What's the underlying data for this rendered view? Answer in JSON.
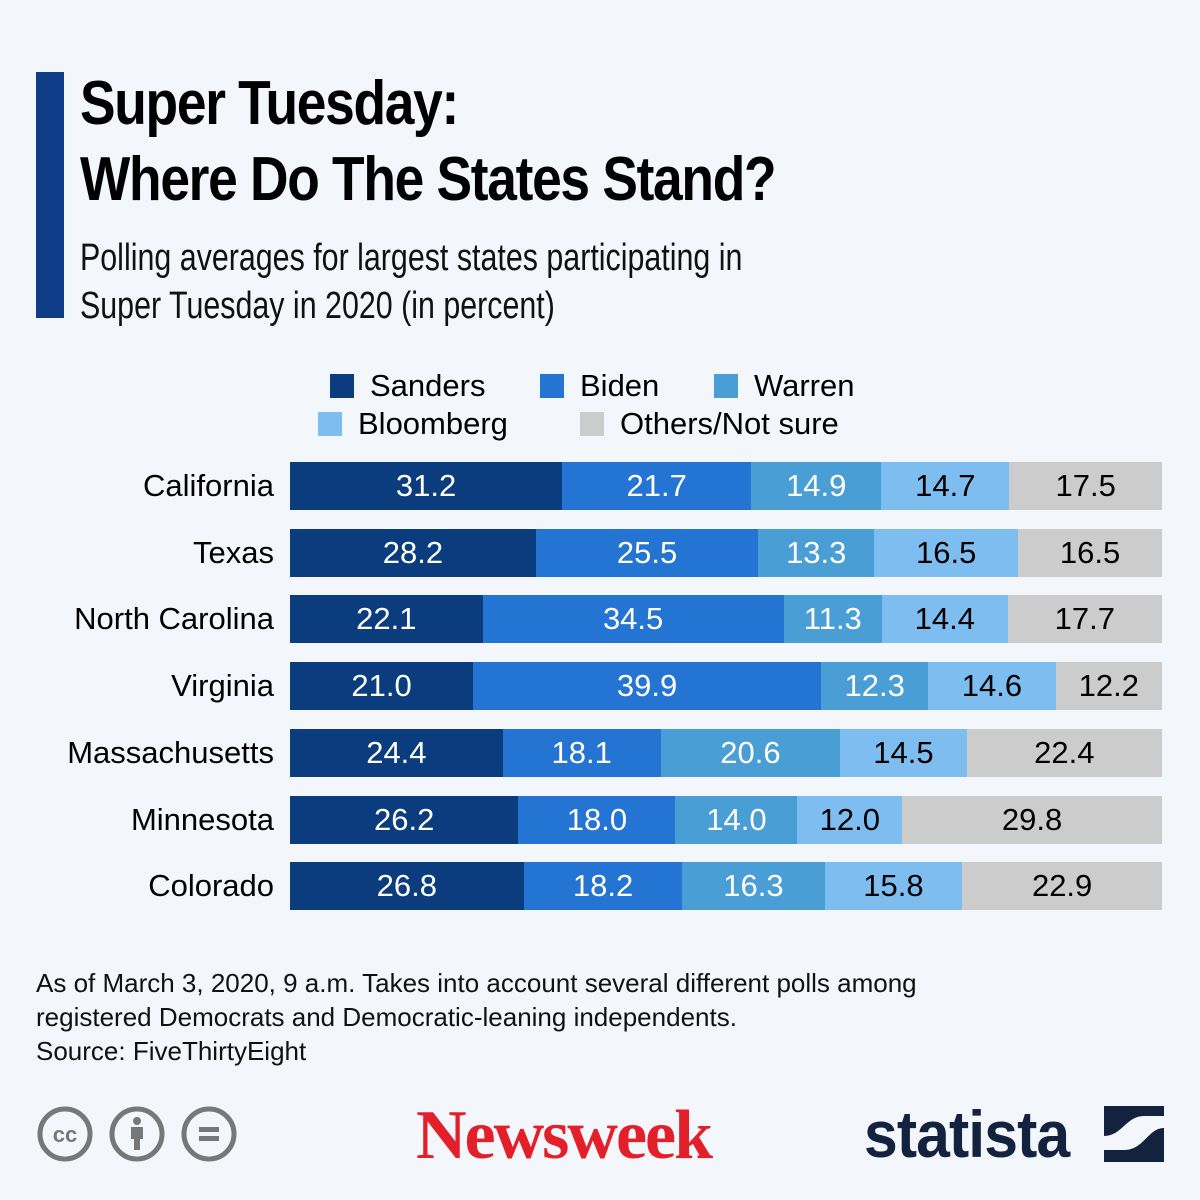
{
  "header": {
    "title_line1": "Super Tuesday:",
    "title_line2": "Where Do The States Stand?",
    "subtitle_line1": "Polling averages for largest states participating in",
    "subtitle_line2": "Super Tuesday in 2020 (in percent)"
  },
  "colors": {
    "accent": "#0f3d87",
    "Sanders": "#0b3d7e",
    "Biden": "#2474d4",
    "Warren": "#4a9ed6",
    "Bloomberg": "#7dbdf0",
    "Others": "#cccccc",
    "newsweek": "#e3202a",
    "statista": "#13223f"
  },
  "chart_data": {
    "type": "bar",
    "orientation": "horizontal",
    "stacked": true,
    "title": "Super Tuesday: Where Do The States Stand?",
    "subtitle": "Polling averages for largest states participating in Super Tuesday in 2020 (in percent)",
    "xlabel": "",
    "ylabel": "",
    "grid": false,
    "legend_position": "top",
    "categories": [
      "California",
      "Texas",
      "North Carolina",
      "Virginia",
      "Massachusetts",
      "Minnesota",
      "Colorado"
    ],
    "series": [
      {
        "name": "Sanders",
        "values": [
          31.2,
          28.2,
          22.1,
          21.0,
          24.4,
          26.2,
          26.8
        ],
        "label_color": "#ffffff"
      },
      {
        "name": "Biden",
        "values": [
          21.7,
          25.5,
          34.5,
          39.9,
          18.1,
          18.0,
          18.2
        ],
        "label_color": "#ffffff"
      },
      {
        "name": "Warren",
        "values": [
          14.9,
          13.3,
          11.3,
          12.3,
          20.6,
          14.0,
          16.3
        ],
        "label_color": "#ffffff"
      },
      {
        "name": "Bloomberg",
        "values": [
          14.7,
          16.5,
          14.4,
          14.6,
          14.5,
          12.0,
          15.8
        ],
        "label_color": "#000000"
      },
      {
        "name": "Others/Not sure",
        "values": [
          17.5,
          16.5,
          17.7,
          12.2,
          22.4,
          29.8,
          22.9
        ],
        "label_color": "#000000"
      }
    ]
  },
  "legend": {
    "items": [
      "Sanders",
      "Biden",
      "Warren",
      "Bloomberg",
      "Others/Not sure"
    ]
  },
  "footer": {
    "note_line1": "As of March 3, 2020, 9 a.m. Takes into account several different polls among",
    "note_line2": "registered Democrats and Democratic-leaning independents.",
    "source": "Source: FiveThirtyEight",
    "license_icons": [
      "cc-icon",
      "attribution-icon",
      "no-derivatives-icon"
    ],
    "newsweek_logo": "Newsweek",
    "statista_logo": "statista"
  }
}
